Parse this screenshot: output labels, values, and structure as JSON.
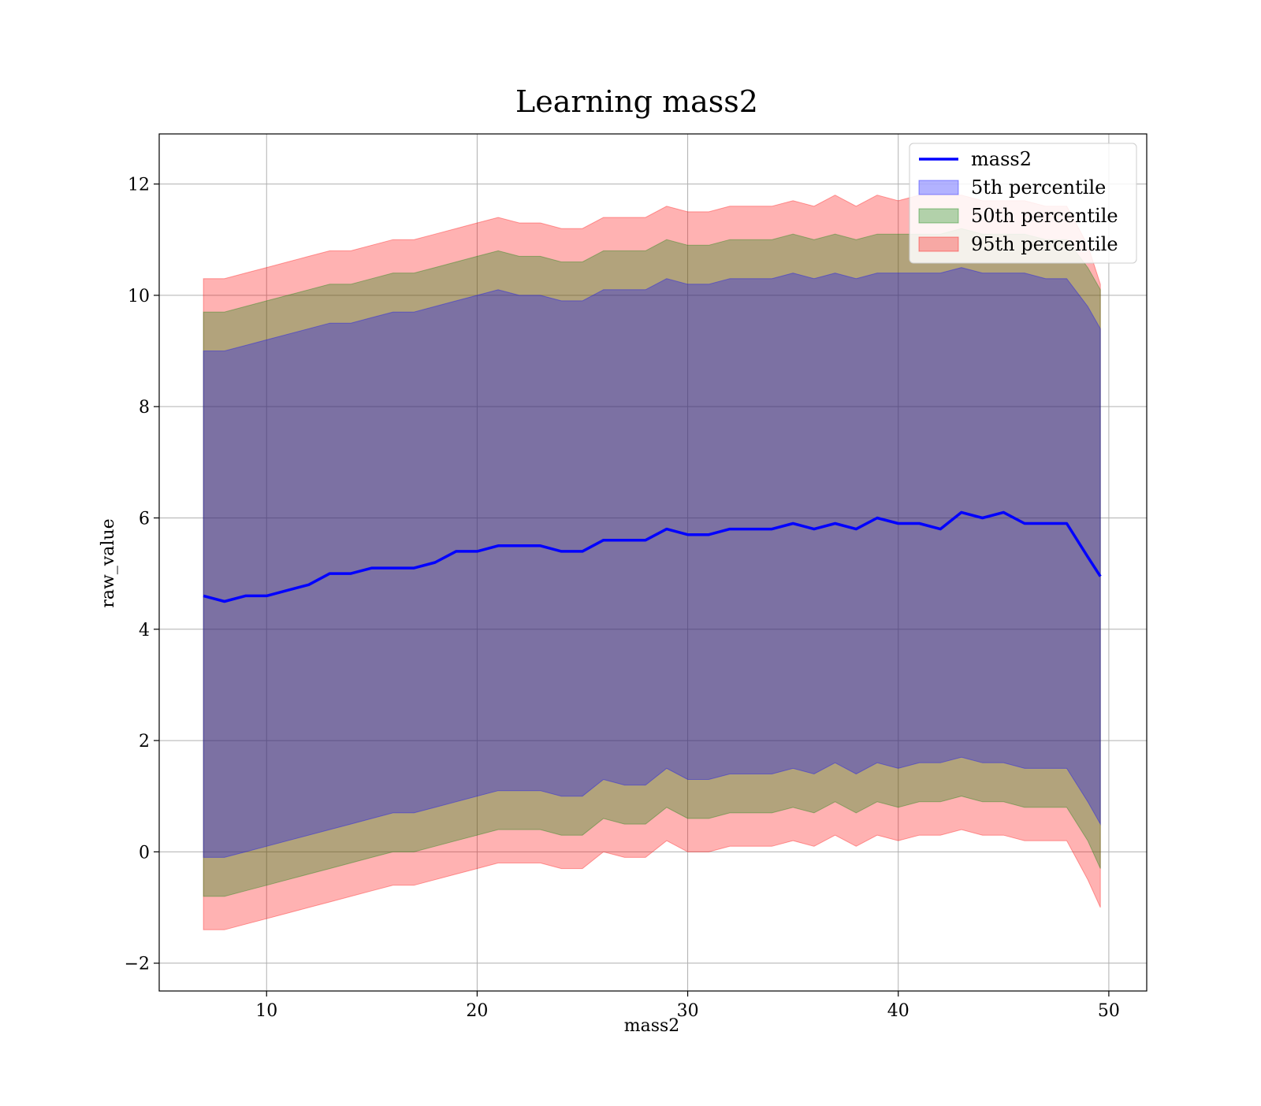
{
  "chart_data": {
    "type": "area",
    "title": "Learning mass2",
    "xlabel": "mass2",
    "ylabel": "raw_value",
    "xlim": [
      4.9,
      51.8
    ],
    "ylim": [
      -2.5,
      12.9
    ],
    "xticks": [
      10,
      20,
      30,
      40,
      50
    ],
    "yticks": [
      -2,
      0,
      2,
      4,
      6,
      8,
      10,
      12
    ],
    "xtick_labels": [
      "10",
      "20",
      "30",
      "40",
      "50"
    ],
    "ytick_labels": [
      "−2",
      "0",
      "2",
      "4",
      "6",
      "8",
      "10",
      "12"
    ],
    "grid": true,
    "legend_position": "upper-right",
    "x": [
      7,
      8,
      9,
      10,
      11,
      12,
      13,
      14,
      15,
      16,
      17,
      18,
      19,
      20,
      21,
      22,
      23,
      24,
      25,
      26,
      27,
      28,
      29,
      30,
      31,
      32,
      33,
      34,
      35,
      36,
      37,
      38,
      39,
      40,
      41,
      42,
      43,
      44,
      45,
      46,
      47,
      48,
      49,
      49.6
    ],
    "series": [
      {
        "name": "mass2",
        "kind": "line",
        "color": "#0000ff",
        "values": [
          4.6,
          4.5,
          4.6,
          4.6,
          4.7,
          4.8,
          5.0,
          5.0,
          5.1,
          5.1,
          5.1,
          5.2,
          5.4,
          5.4,
          5.5,
          5.5,
          5.5,
          5.4,
          5.4,
          5.6,
          5.6,
          5.6,
          5.8,
          5.7,
          5.7,
          5.8,
          5.8,
          5.8,
          5.9,
          5.8,
          5.9,
          5.8,
          6.0,
          5.9,
          5.9,
          5.8,
          6.1,
          6.0,
          6.1,
          5.9,
          5.9,
          5.9,
          5.3,
          4.95
        ]
      },
      {
        "name": "5th percentile",
        "kind": "band",
        "color": "#0000ff",
        "lower": [
          -0.1,
          -0.1,
          0.0,
          0.1,
          0.2,
          0.3,
          0.4,
          0.5,
          0.6,
          0.7,
          0.7,
          0.8,
          0.9,
          1.0,
          1.1,
          1.1,
          1.1,
          1.0,
          1.0,
          1.3,
          1.2,
          1.2,
          1.5,
          1.3,
          1.3,
          1.4,
          1.4,
          1.4,
          1.5,
          1.4,
          1.6,
          1.4,
          1.6,
          1.5,
          1.6,
          1.6,
          1.7,
          1.6,
          1.6,
          1.5,
          1.5,
          1.5,
          0.9,
          0.5
        ],
        "upper": [
          9.0,
          9.0,
          9.1,
          9.2,
          9.3,
          9.4,
          9.5,
          9.5,
          9.6,
          9.7,
          9.7,
          9.8,
          9.9,
          10.0,
          10.1,
          10.0,
          10.0,
          9.9,
          9.9,
          10.1,
          10.1,
          10.1,
          10.3,
          10.2,
          10.2,
          10.3,
          10.3,
          10.3,
          10.4,
          10.3,
          10.4,
          10.3,
          10.4,
          10.4,
          10.4,
          10.4,
          10.5,
          10.4,
          10.4,
          10.4,
          10.3,
          10.3,
          9.8,
          9.4
        ]
      },
      {
        "name": "50th percentile",
        "kind": "band",
        "color": "#008000",
        "lower": [
          -0.8,
          -0.8,
          -0.7,
          -0.6,
          -0.5,
          -0.4,
          -0.3,
          -0.2,
          -0.1,
          0.0,
          0.0,
          0.1,
          0.2,
          0.3,
          0.4,
          0.4,
          0.4,
          0.3,
          0.3,
          0.6,
          0.5,
          0.5,
          0.8,
          0.6,
          0.6,
          0.7,
          0.7,
          0.7,
          0.8,
          0.7,
          0.9,
          0.7,
          0.9,
          0.8,
          0.9,
          0.9,
          1.0,
          0.9,
          0.9,
          0.8,
          0.8,
          0.8,
          0.2,
          -0.3
        ],
        "upper": [
          9.7,
          9.7,
          9.8,
          9.9,
          10.0,
          10.1,
          10.2,
          10.2,
          10.3,
          10.4,
          10.4,
          10.5,
          10.6,
          10.7,
          10.8,
          10.7,
          10.7,
          10.6,
          10.6,
          10.8,
          10.8,
          10.8,
          11.0,
          10.9,
          10.9,
          11.0,
          11.0,
          11.0,
          11.1,
          11.0,
          11.1,
          11.0,
          11.1,
          11.1,
          11.1,
          11.1,
          11.2,
          11.1,
          11.1,
          11.1,
          11.0,
          11.0,
          10.5,
          10.1
        ]
      },
      {
        "name": "95th percentile",
        "kind": "band",
        "color": "#ff0000",
        "lower": [
          -1.4,
          -1.4,
          -1.3,
          -1.2,
          -1.1,
          -1.0,
          -0.9,
          -0.8,
          -0.7,
          -0.6,
          -0.6,
          -0.5,
          -0.4,
          -0.3,
          -0.2,
          -0.2,
          -0.2,
          -0.3,
          -0.3,
          0.0,
          -0.1,
          -0.1,
          0.2,
          0.0,
          0.0,
          0.1,
          0.1,
          0.1,
          0.2,
          0.1,
          0.3,
          0.1,
          0.3,
          0.2,
          0.3,
          0.3,
          0.4,
          0.3,
          0.3,
          0.2,
          0.2,
          0.2,
          -0.5,
          -1.0
        ],
        "upper": [
          10.3,
          10.3,
          10.4,
          10.5,
          10.6,
          10.7,
          10.8,
          10.8,
          10.9,
          11.0,
          11.0,
          11.1,
          11.2,
          11.3,
          11.4,
          11.3,
          11.3,
          11.2,
          11.2,
          11.4,
          11.4,
          11.4,
          11.6,
          11.5,
          11.5,
          11.6,
          11.6,
          11.6,
          11.7,
          11.6,
          11.8,
          11.6,
          11.8,
          11.7,
          11.8,
          11.8,
          11.8,
          11.7,
          11.7,
          11.7,
          11.6,
          11.6,
          10.9,
          10.2
        ]
      }
    ]
  }
}
